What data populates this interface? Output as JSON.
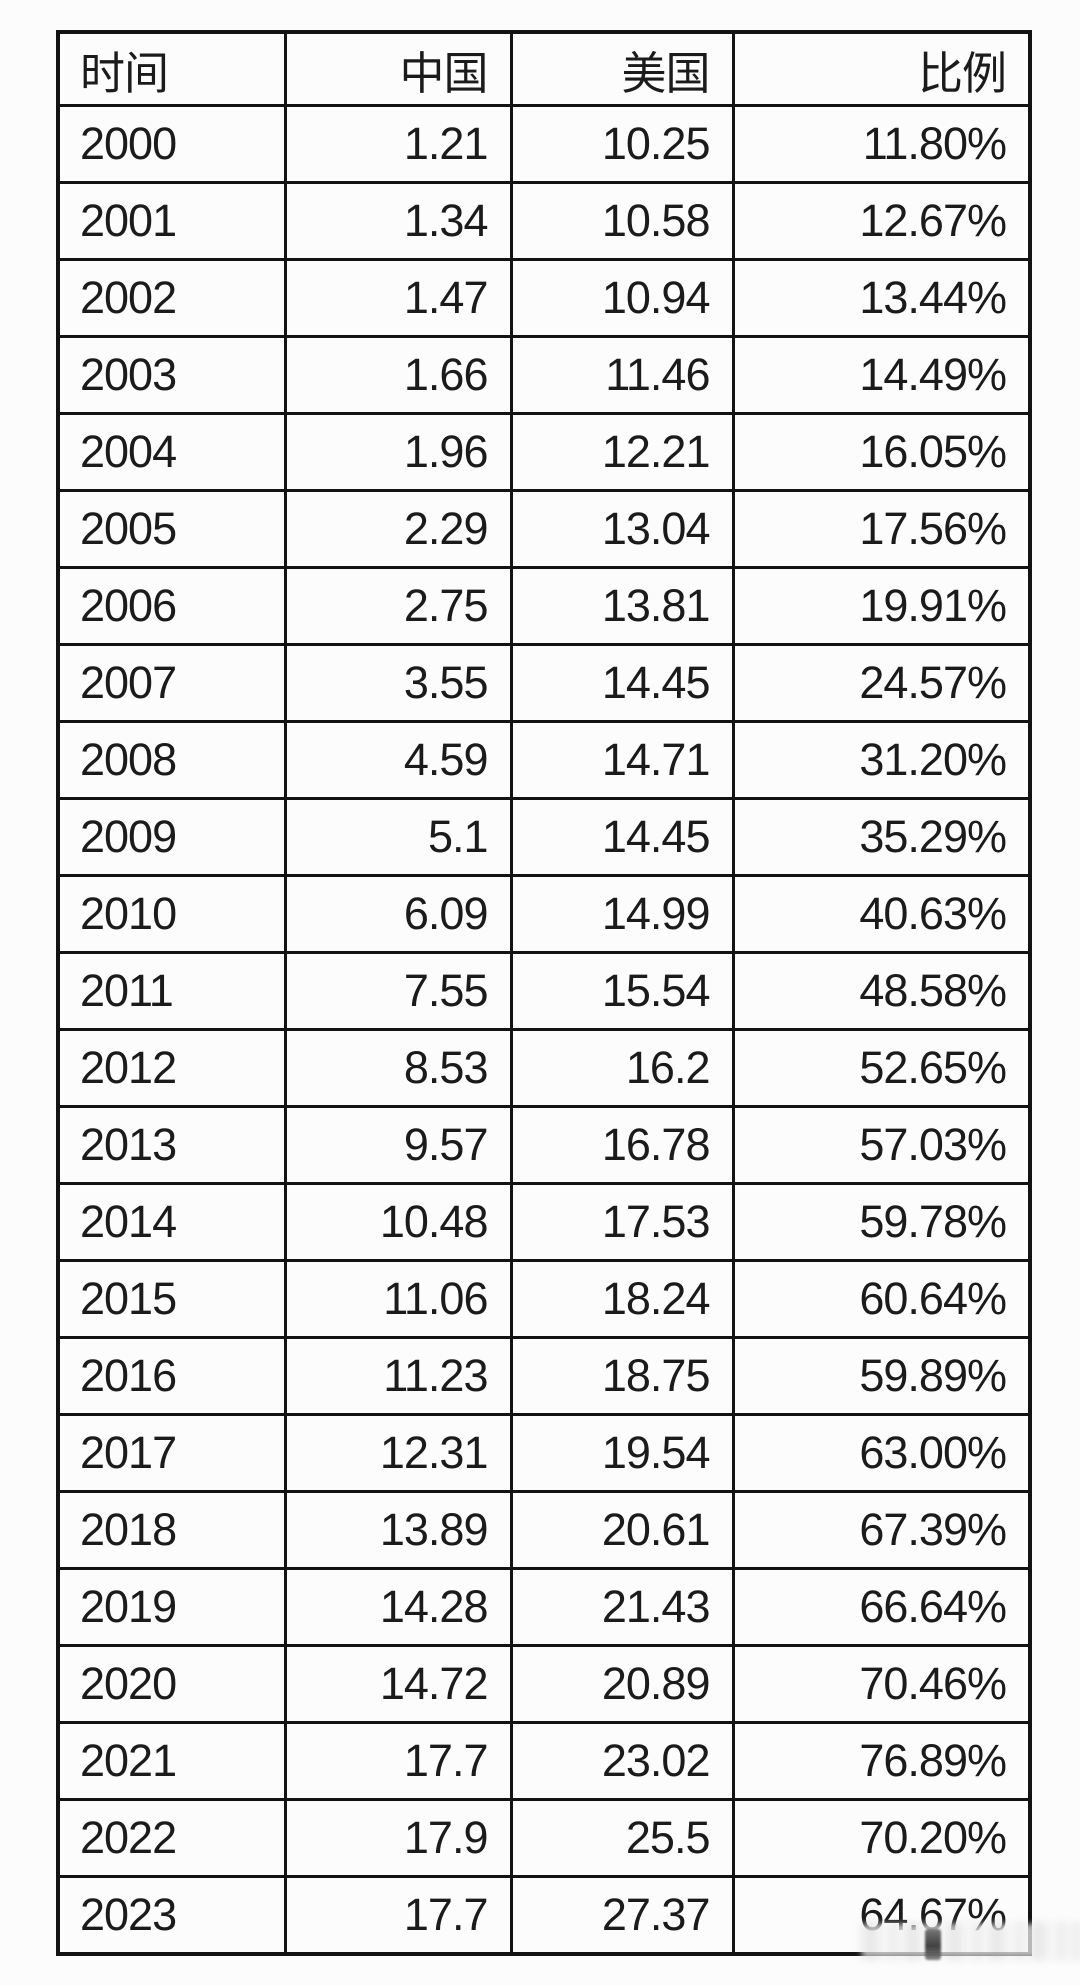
{
  "page": {
    "background": "#fcfcfc",
    "border_color": "#131313",
    "text_color": "#1b1b1b"
  },
  "table": {
    "columns": [
      {
        "key": "year",
        "label": "时间",
        "align": "left"
      },
      {
        "key": "china",
        "label": "中国",
        "align": "right"
      },
      {
        "key": "usa",
        "label": "美国",
        "align": "right"
      },
      {
        "key": "ratio",
        "label": "比例",
        "align": "right"
      }
    ],
    "rows": [
      [
        "2000",
        "1.21",
        "10.25",
        "11.80%"
      ],
      [
        "2001",
        "1.34",
        "10.58",
        "12.67%"
      ],
      [
        "2002",
        "1.47",
        "10.94",
        "13.44%"
      ],
      [
        "2003",
        "1.66",
        "11.46",
        "14.49%"
      ],
      [
        "2004",
        "1.96",
        "12.21",
        "16.05%"
      ],
      [
        "2005",
        "2.29",
        "13.04",
        "17.56%"
      ],
      [
        "2006",
        "2.75",
        "13.81",
        "19.91%"
      ],
      [
        "2007",
        "3.55",
        "14.45",
        "24.57%"
      ],
      [
        "2008",
        "4.59",
        "14.71",
        "31.20%"
      ],
      [
        "2009",
        "5.1",
        "14.45",
        "35.29%"
      ],
      [
        "2010",
        "6.09",
        "14.99",
        "40.63%"
      ],
      [
        "2011",
        "7.55",
        "15.54",
        "48.58%"
      ],
      [
        "2012",
        "8.53",
        "16.2",
        "52.65%"
      ],
      [
        "2013",
        "9.57",
        "16.78",
        "57.03%"
      ],
      [
        "2014",
        "10.48",
        "17.53",
        "59.78%"
      ],
      [
        "2015",
        "11.06",
        "18.24",
        "60.64%"
      ],
      [
        "2016",
        "11.23",
        "18.75",
        "59.89%"
      ],
      [
        "2017",
        "12.31",
        "19.54",
        "63.00%"
      ],
      [
        "2018",
        "13.89",
        "20.61",
        "67.39%"
      ],
      [
        "2019",
        "14.28",
        "21.43",
        "66.64%"
      ],
      [
        "2020",
        "14.72",
        "20.89",
        "70.46%"
      ],
      [
        "2021",
        "17.7",
        "23.02",
        "76.89%"
      ],
      [
        "2022",
        "17.9",
        "25.5",
        "70.20%"
      ],
      [
        "2023",
        "17.7",
        "27.37",
        "64.67%"
      ]
    ]
  },
  "chart_data": {
    "type": "table",
    "title": "",
    "columns": [
      "时间",
      "中国",
      "美国",
      "比例"
    ],
    "x": [
      2000,
      2001,
      2002,
      2003,
      2004,
      2005,
      2006,
      2007,
      2008,
      2009,
      2010,
      2011,
      2012,
      2013,
      2014,
      2015,
      2016,
      2017,
      2018,
      2019,
      2020,
      2021,
      2022,
      2023
    ],
    "series": [
      {
        "name": "中国",
        "values": [
          1.21,
          1.34,
          1.47,
          1.66,
          1.96,
          2.29,
          2.75,
          3.55,
          4.59,
          5.1,
          6.09,
          7.55,
          8.53,
          9.57,
          10.48,
          11.06,
          11.23,
          12.31,
          13.89,
          14.28,
          14.72,
          17.7,
          17.9,
          17.7
        ]
      },
      {
        "name": "美国",
        "values": [
          10.25,
          10.58,
          10.94,
          11.46,
          12.21,
          13.04,
          13.81,
          14.45,
          14.71,
          14.45,
          14.99,
          15.54,
          16.2,
          16.78,
          17.53,
          18.24,
          18.75,
          19.54,
          20.61,
          21.43,
          20.89,
          23.02,
          25.5,
          27.37
        ]
      },
      {
        "name": "比例",
        "values": [
          "11.80%",
          "12.67%",
          "13.44%",
          "14.49%",
          "16.05%",
          "17.56%",
          "19.91%",
          "24.57%",
          "31.20%",
          "35.29%",
          "40.63%",
          "48.58%",
          "52.65%",
          "57.03%",
          "59.78%",
          "60.64%",
          "59.89%",
          "63.00%",
          "67.39%",
          "66.64%",
          "70.46%",
          "76.89%",
          "70.20%",
          "64.67%"
        ]
      }
    ],
    "layout": {
      "grid": "full-borders",
      "header_row": true
    }
  },
  "artifacts": {
    "watermark": "blurred-smudge-bottom-right"
  }
}
